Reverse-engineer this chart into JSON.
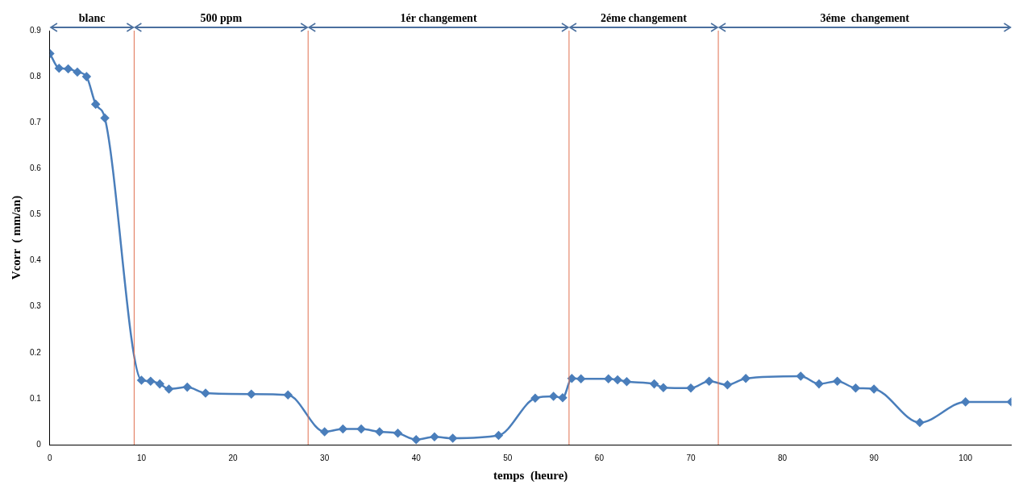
{
  "chart_data": {
    "type": "line",
    "xlabel": "temps  (heure)",
    "ylabel": "Vcorr  ( mm/an)",
    "x": [
      0,
      1,
      2,
      3,
      4,
      5,
      6,
      10,
      11,
      12,
      13,
      15,
      17,
      22,
      26,
      30,
      32,
      34,
      36,
      38,
      40,
      42,
      44,
      49,
      53,
      55,
      56,
      57,
      58,
      61,
      62,
      63,
      66,
      67,
      70,
      72,
      74,
      76,
      82,
      84,
      86,
      88,
      90,
      95,
      100,
      105
    ],
    "series": [
      {
        "color": "#4a7ebb",
        "values": [
          0.85,
          0.818,
          0.817,
          0.81,
          0.8,
          0.74,
          0.71,
          0.14,
          0.138,
          0.132,
          0.121,
          0.125,
          0.112,
          0.11,
          0.108,
          0.028,
          0.034,
          0.034,
          0.028,
          0.025,
          0.011,
          0.017,
          0.014,
          0.02,
          0.101,
          0.105,
          0.102,
          0.144,
          0.143,
          0.143,
          0.141,
          0.137,
          0.132,
          0.124,
          0.123,
          0.138,
          0.13,
          0.144,
          0.149,
          0.132,
          0.138,
          0.123,
          0.121,
          0.048,
          0.093,
          0.093
        ]
      }
    ],
    "xlim": [
      0,
      105
    ],
    "xticks": [
      0,
      10,
      20,
      30,
      40,
      50,
      60,
      70,
      80,
      90,
      100
    ],
    "ylim": [
      0,
      0.9
    ],
    "yticks": [
      0,
      0.1,
      0.2,
      0.3,
      0.4,
      0.5,
      0.6,
      0.7,
      0.8,
      0.9
    ],
    "ref_lines": [
      {
        "axis": "x",
        "value": 9.2,
        "color": "#e07050"
      },
      {
        "axis": "x",
        "value": 28.2,
        "color": "#e07050"
      },
      {
        "axis": "x",
        "value": 56.7,
        "color": "#e07050"
      },
      {
        "axis": "x",
        "value": 73,
        "color": "#e07050"
      }
    ],
    "annotations": [
      "blanc",
      "500 ppm",
      "1ér changement",
      "2éme changement",
      "3éme  changement"
    ],
    "marker": "diamond",
    "line_style": "solid",
    "grid": false,
    "legend": false
  }
}
